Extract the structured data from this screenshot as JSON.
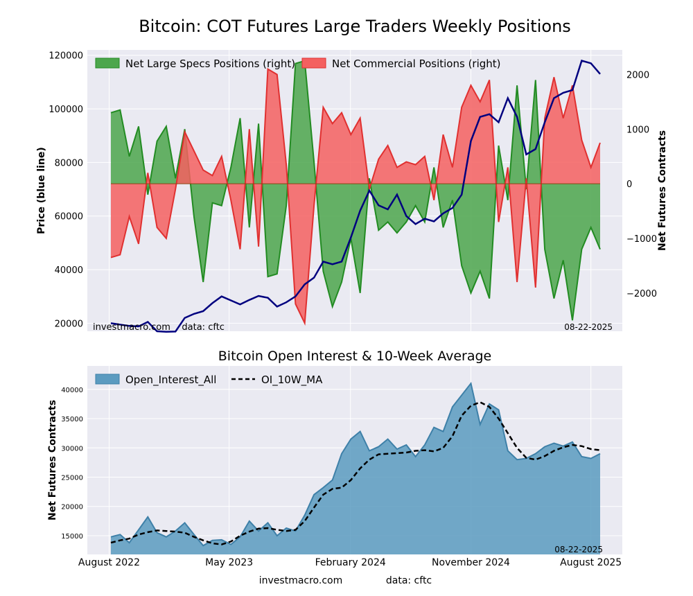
{
  "title": "Bitcoin: COT Futures Large Traders Weekly Positions",
  "colors": {
    "panel_bg": "#EAEAF2",
    "grid": "#ffffff",
    "price": "#00007F",
    "spec_fill": "#4CA64C",
    "spec_line": "#228B22",
    "comm_fill": "#F46060",
    "comm_line": "#E03030",
    "oi_fill": "#5B9BC0",
    "oi_line": "#3E80A8",
    "ma_line": "#000000"
  },
  "top_watermark": "investmacro.com    data: cftc",
  "top_date": "08-22-2025",
  "bottom_date": "08-22-2025",
  "footer": {
    "site": "investmacro.com",
    "source": "data: cftc"
  },
  "chart_data": [
    {
      "type": "line+area",
      "title": "",
      "ylabel_left": "Price (blue line)",
      "ylabel_right": "Net Futures Contracts",
      "ylim_left": [
        17000,
        122000
      ],
      "ylim_right": [
        -2700,
        2450
      ],
      "yticks_left": [
        20000,
        40000,
        60000,
        80000,
        100000,
        120000
      ],
      "yticks_left_labels": [
        "20000",
        "40000",
        "60000",
        "80000",
        "100000",
        "120000"
      ],
      "yticks_right": [
        -2000,
        -1000,
        0,
        1000,
        2000
      ],
      "yticks_right_labels": [
        "−2000",
        "−1000",
        "0",
        "1000",
        "2000"
      ],
      "x_start": "2022-08-05",
      "x_end": "2025-08-22",
      "legend": {
        "position": "top-left",
        "entries": [
          "Net Large Specs Positions (right)",
          "Net Commercial Positions (right)"
        ]
      },
      "grid": true,
      "series": [
        {
          "name": "Net Large Specs Positions (right)",
          "axis": "right",
          "x": [
            "2022-08-05",
            "2022-08-26",
            "2022-09-16",
            "2022-10-07",
            "2022-10-28",
            "2022-11-18",
            "2022-12-09",
            "2022-12-30",
            "2023-01-20",
            "2023-02-10",
            "2023-03-03",
            "2023-03-24",
            "2023-04-14",
            "2023-05-05",
            "2023-05-26",
            "2023-06-16",
            "2023-07-07",
            "2023-07-28",
            "2023-08-18",
            "2023-09-08",
            "2023-09-29",
            "2023-10-20",
            "2023-11-10",
            "2023-12-01",
            "2023-12-22",
            "2024-01-12",
            "2024-02-02",
            "2024-02-23",
            "2024-03-15",
            "2024-04-05",
            "2024-04-26",
            "2024-05-17",
            "2024-06-07",
            "2024-06-28",
            "2024-07-19",
            "2024-08-09",
            "2024-08-30",
            "2024-09-20",
            "2024-10-11",
            "2024-11-01",
            "2024-11-22",
            "2024-12-13",
            "2025-01-03",
            "2025-01-24",
            "2025-02-14",
            "2025-03-07",
            "2025-03-28",
            "2025-04-18",
            "2025-05-09",
            "2025-05-30",
            "2025-06-20",
            "2025-07-11",
            "2025-08-01",
            "2025-08-22"
          ],
          "values": [
            1300,
            1350,
            500,
            1050,
            -200,
            780,
            1050,
            100,
            1000,
            -600,
            -1800,
            -350,
            -400,
            300,
            1200,
            -800,
            1100,
            -1700,
            -1650,
            -400,
            2200,
            2250,
            400,
            -1600,
            -2250,
            -1800,
            -1000,
            -2000,
            100,
            -850,
            -700,
            -900,
            -700,
            -400,
            -700,
            300,
            -800,
            -300,
            -1500,
            -2000,
            -1600,
            -2100,
            700,
            -300,
            1800,
            -100,
            1900,
            -1200,
            -2100,
            -1400,
            -2500,
            -1200,
            -800,
            -1200
          ]
        },
        {
          "name": "Net Commercial Positions (right)",
          "axis": "right",
          "x": [
            "2022-08-05",
            "2022-08-26",
            "2022-09-16",
            "2022-10-07",
            "2022-10-28",
            "2022-11-18",
            "2022-12-09",
            "2022-12-30",
            "2023-01-20",
            "2023-02-10",
            "2023-03-03",
            "2023-03-24",
            "2023-04-14",
            "2023-05-05",
            "2023-05-26",
            "2023-06-16",
            "2023-07-07",
            "2023-07-28",
            "2023-08-18",
            "2023-09-08",
            "2023-09-29",
            "2023-10-20",
            "2023-11-10",
            "2023-12-01",
            "2023-12-22",
            "2024-01-12",
            "2024-02-02",
            "2024-02-23",
            "2024-03-15",
            "2024-04-05",
            "2024-04-26",
            "2024-05-17",
            "2024-06-07",
            "2024-06-28",
            "2024-07-19",
            "2024-08-09",
            "2024-08-30",
            "2024-09-20",
            "2024-10-11",
            "2024-11-01",
            "2024-11-22",
            "2024-12-13",
            "2025-01-03",
            "2025-01-24",
            "2025-02-14",
            "2025-03-07",
            "2025-03-28",
            "2025-04-18",
            "2025-05-09",
            "2025-05-30",
            "2025-06-20",
            "2025-07-11",
            "2025-08-01",
            "2025-08-22"
          ],
          "values": [
            -1350,
            -1300,
            -600,
            -1100,
            200,
            -800,
            -1000,
            -100,
            950,
            600,
            250,
            150,
            500,
            -300,
            -1200,
            1000,
            -1150,
            2100,
            2000,
            350,
            -2200,
            -2550,
            -400,
            1400,
            1100,
            1300,
            900,
            1200,
            -100,
            450,
            700,
            300,
            400,
            350,
            500,
            -300,
            900,
            300,
            1400,
            1800,
            1500,
            1900,
            -700,
            300,
            -1800,
            100,
            -1900,
            1200,
            1950,
            1200,
            1800,
            800,
            300,
            750
          ]
        },
        {
          "name": "",
          "axis": "left",
          "x": [
            "2022-08-05",
            "2022-08-26",
            "2022-09-16",
            "2022-10-07",
            "2022-10-28",
            "2022-11-18",
            "2022-12-09",
            "2022-12-30",
            "2023-01-20",
            "2023-02-10",
            "2023-03-03",
            "2023-03-24",
            "2023-04-14",
            "2023-05-05",
            "2023-05-26",
            "2023-06-16",
            "2023-07-07",
            "2023-07-28",
            "2023-08-18",
            "2023-09-08",
            "2023-09-29",
            "2023-10-20",
            "2023-11-10",
            "2023-12-01",
            "2023-12-22",
            "2024-01-12",
            "2024-02-02",
            "2024-02-23",
            "2024-03-15",
            "2024-04-05",
            "2024-04-26",
            "2024-05-17",
            "2024-06-07",
            "2024-06-28",
            "2024-07-19",
            "2024-08-09",
            "2024-08-30",
            "2024-09-20",
            "2024-10-11",
            "2024-11-01",
            "2024-11-22",
            "2024-12-13",
            "2025-01-03",
            "2025-01-24",
            "2025-02-14",
            "2025-03-07",
            "2025-03-28",
            "2025-04-18",
            "2025-05-09",
            "2025-05-30",
            "2025-06-20",
            "2025-07-11",
            "2025-08-01",
            "2025-08-22"
          ],
          "values": [
            20000,
            19500,
            19000,
            18800,
            20500,
            17000,
            16800,
            16900,
            22000,
            23500,
            24500,
            27500,
            30000,
            28500,
            27000,
            28700,
            30200,
            29500,
            26200,
            27800,
            30000,
            34500,
            37000,
            43000,
            42000,
            43000,
            52000,
            62000,
            69500,
            64000,
            62500,
            68000,
            60000,
            57000,
            59000,
            58000,
            61000,
            63000,
            68000,
            88000,
            97000,
            98000,
            95000,
            104000,
            97000,
            83000,
            85000,
            95000,
            104000,
            106000,
            107000,
            118000,
            117000,
            113000
          ]
        }
      ]
    },
    {
      "type": "area+line",
      "title": "Bitcoin Open Interest & 10-Week Average",
      "ylabel": "Net Futures Contracts",
      "ylim": [
        11800,
        44000
      ],
      "yticks": [
        15000,
        20000,
        25000,
        30000,
        35000,
        40000
      ],
      "yticks_labels": [
        "15000",
        "20000",
        "25000",
        "30000",
        "35000",
        "40000"
      ],
      "x_start": "2022-08-05",
      "x_end": "2025-08-22",
      "xticks": [
        "2022-08-01",
        "2023-05-01",
        "2024-02-01",
        "2024-11-01",
        "2025-08-01"
      ],
      "xtick_labels": [
        "August 2022",
        "May 2023",
        "February 2024",
        "November 2024",
        "August 2025"
      ],
      "legend": {
        "position": "top-left",
        "entries": [
          "Open_Interest_All",
          "OI_10W_MA"
        ]
      },
      "grid": true,
      "series": [
        {
          "name": "Open_Interest_All",
          "x": [
            "2022-08-05",
            "2022-08-26",
            "2022-09-16",
            "2022-10-07",
            "2022-10-28",
            "2022-11-18",
            "2022-12-09",
            "2022-12-30",
            "2023-01-20",
            "2023-02-10",
            "2023-03-03",
            "2023-03-24",
            "2023-04-14",
            "2023-05-05",
            "2023-05-26",
            "2023-06-16",
            "2023-07-07",
            "2023-07-28",
            "2023-08-18",
            "2023-09-08",
            "2023-09-29",
            "2023-10-20",
            "2023-11-10",
            "2023-12-01",
            "2023-12-22",
            "2024-01-12",
            "2024-02-02",
            "2024-02-23",
            "2024-03-15",
            "2024-04-05",
            "2024-04-26",
            "2024-05-17",
            "2024-06-07",
            "2024-06-28",
            "2024-07-19",
            "2024-08-09",
            "2024-08-30",
            "2024-09-20",
            "2024-10-11",
            "2024-11-01",
            "2024-11-22",
            "2024-12-13",
            "2025-01-03",
            "2025-01-24",
            "2025-02-14",
            "2025-03-07",
            "2025-03-28",
            "2025-04-18",
            "2025-05-09",
            "2025-05-30",
            "2025-06-20",
            "2025-07-11",
            "2025-08-01",
            "2025-08-22"
          ],
          "values": [
            14800,
            15200,
            13800,
            16000,
            18200,
            15500,
            14800,
            15800,
            17200,
            15200,
            13300,
            14200,
            14300,
            13500,
            14800,
            17500,
            15800,
            17200,
            15000,
            16300,
            15800,
            18500,
            22000,
            23200,
            24500,
            29000,
            31500,
            32800,
            29500,
            30200,
            31500,
            29800,
            30500,
            28500,
            30500,
            33500,
            32800,
            37000,
            39000,
            41000,
            34000,
            37500,
            36500,
            29500,
            28000,
            28200,
            29000,
            30200,
            30800,
            30300,
            31000,
            28500,
            28200,
            29000
          ]
        },
        {
          "name": "OI_10W_MA",
          "x": [
            "2022-08-05",
            "2022-08-26",
            "2022-09-16",
            "2022-10-07",
            "2022-10-28",
            "2022-11-18",
            "2022-12-09",
            "2022-12-30",
            "2023-01-20",
            "2023-02-10",
            "2023-03-03",
            "2023-03-24",
            "2023-04-14",
            "2023-05-05",
            "2023-05-26",
            "2023-06-16",
            "2023-07-07",
            "2023-07-28",
            "2023-08-18",
            "2023-09-08",
            "2023-09-29",
            "2023-10-20",
            "2023-11-10",
            "2023-12-01",
            "2023-12-22",
            "2024-01-12",
            "2024-02-02",
            "2024-02-23",
            "2024-03-15",
            "2024-04-05",
            "2024-04-26",
            "2024-05-17",
            "2024-06-07",
            "2024-06-28",
            "2024-07-19",
            "2024-08-09",
            "2024-08-30",
            "2024-09-20",
            "2024-10-11",
            "2024-11-01",
            "2024-11-22",
            "2024-12-13",
            "2025-01-03",
            "2025-01-24",
            "2025-02-14",
            "2025-03-07",
            "2025-03-28",
            "2025-04-18",
            "2025-05-09",
            "2025-05-30",
            "2025-06-20",
            "2025-07-11",
            "2025-08-01",
            "2025-08-22"
          ],
          "values": [
            13800,
            14200,
            14500,
            15200,
            15600,
            15900,
            15800,
            15700,
            15500,
            14800,
            14200,
            13700,
            13500,
            14000,
            15000,
            15700,
            16200,
            16300,
            16000,
            15800,
            16000,
            17500,
            19800,
            22000,
            23000,
            23200,
            24500,
            26500,
            28000,
            28900,
            29000,
            29100,
            29200,
            29500,
            29600,
            29400,
            30000,
            32000,
            35500,
            37200,
            37800,
            37000,
            35000,
            32500,
            30000,
            28300,
            28000,
            28600,
            29500,
            30100,
            30500,
            30300,
            29800,
            29600
          ]
        }
      ]
    }
  ]
}
